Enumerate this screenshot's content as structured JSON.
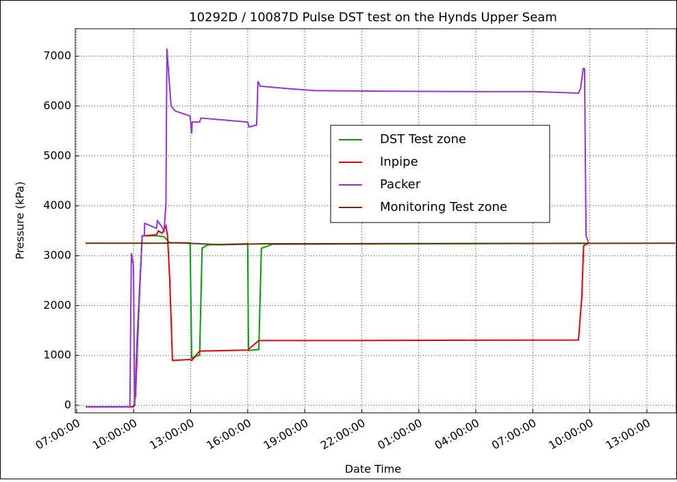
{
  "chart_data": {
    "type": "line",
    "title": "10292D / 10087D Pulse DST test on the Hynds Upper Seam",
    "xlabel": "Date Time",
    "ylabel": "Pressure (kPa)",
    "xlim": [
      6.93,
      38.55
    ],
    "ylim": [
      -150,
      7550
    ],
    "xticks": [
      {
        "value": 7,
        "label": "07:00:00"
      },
      {
        "value": 10,
        "label": "10:00:00"
      },
      {
        "value": 13,
        "label": "13:00:00"
      },
      {
        "value": 16,
        "label": "16:00:00"
      },
      {
        "value": 19,
        "label": "19:00:00"
      },
      {
        "value": 22,
        "label": "22:00:00"
      },
      {
        "value": 25,
        "label": "01:00:00"
      },
      {
        "value": 28,
        "label": "04:00:00"
      },
      {
        "value": 31,
        "label": "07:00:00"
      },
      {
        "value": 34,
        "label": "10:00:00"
      },
      {
        "value": 37,
        "label": "13:00:00"
      }
    ],
    "yticks": [
      0,
      1000,
      2000,
      3000,
      4000,
      5000,
      6000,
      7000
    ],
    "grid": true,
    "legend": "center right",
    "series": [
      {
        "name": "DST Test zone",
        "color": "#00a000",
        "x": [
          7.47,
          10.0,
          10.05,
          10.2,
          10.45,
          11.2,
          11.6,
          11.9,
          12.97,
          13.05,
          13.4,
          13.47,
          13.6,
          13.9,
          16.0,
          16.04,
          16.55,
          16.58,
          16.72,
          17.3,
          33.93
        ],
        "values": [
          -30,
          -30,
          0,
          1500,
          3400,
          3400,
          3380,
          3260,
          3260,
          950,
          1000,
          1000,
          3150,
          3220,
          3240,
          1100,
          1120,
          1120,
          3150,
          3230,
          3250
        ]
      },
      {
        "name": "Inpipe",
        "color": "#e8000b",
        "x": [
          7.47,
          9.92,
          10.02,
          10.1,
          10.3,
          10.45,
          11.2,
          11.3,
          11.5,
          11.7,
          11.78,
          11.9,
          12.04,
          12.97,
          13.05,
          13.47,
          16.0,
          16.58,
          20.0,
          33.4,
          33.58,
          33.67,
          33.93
        ],
        "values": [
          -30,
          -30,
          0,
          200,
          2200,
          3400,
          3420,
          3500,
          3450,
          3600,
          3400,
          2500,
          900,
          920,
          900,
          1090,
          1110,
          1300,
          1300,
          1310,
          2200,
          3200,
          3250
        ]
      },
      {
        "name": "Packer",
        "color": "#9b30d9",
        "x": [
          7.47,
          9.8,
          9.88,
          9.99,
          10.05,
          10.35,
          10.45,
          10.56,
          10.58,
          11.2,
          11.25,
          11.45,
          11.6,
          11.7,
          11.75,
          11.97,
          12.2,
          12.97,
          13.05,
          13.08,
          13.47,
          13.54,
          16.0,
          16.07,
          16.47,
          16.54,
          16.65,
          18.1,
          19.5,
          22.8,
          28.2,
          31.05,
          33.4,
          33.51,
          33.65,
          33.72,
          33.8,
          33.93
        ],
        "values": [
          -30,
          -30,
          3050,
          2800,
          0,
          2600,
          3400,
          3400,
          3650,
          3550,
          3700,
          3600,
          3500,
          4050,
          7150,
          6000,
          5900,
          5800,
          5450,
          5680,
          5680,
          5760,
          5680,
          5580,
          5620,
          6500,
          6400,
          6350,
          6310,
          6300,
          6290,
          6290,
          6260,
          6350,
          6750,
          6750,
          3400,
          3260
        ]
      },
      {
        "name": "Monitoring Test zone",
        "color": "#6b2f00",
        "x": [
          7.47,
          11.5,
          12.2,
          13.5,
          14.5,
          17.0,
          38.5
        ],
        "values": [
          3250,
          3250,
          3260,
          3240,
          3220,
          3240,
          3250
        ]
      }
    ]
  }
}
